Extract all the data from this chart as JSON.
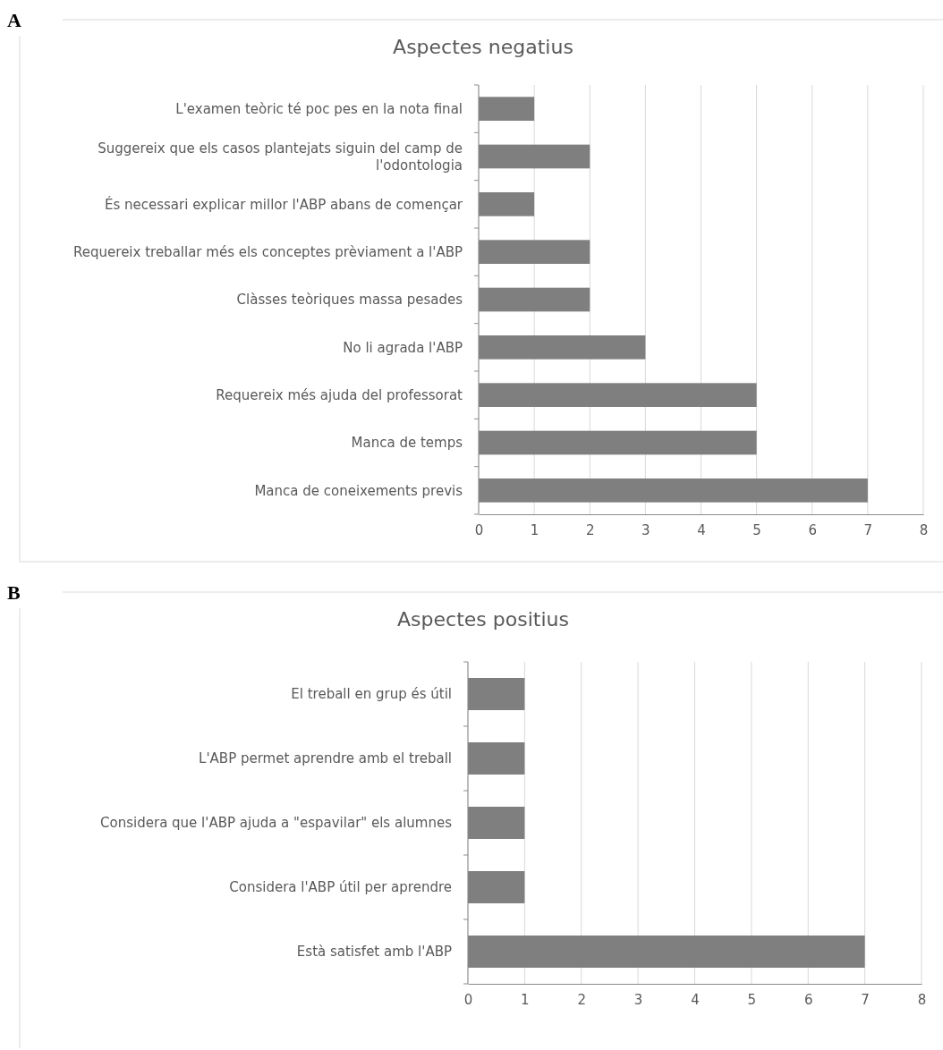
{
  "chart_data": [
    {
      "type": "bar",
      "orientation": "horizontal",
      "title": "Aspectes negatius",
      "annotations": [
        "A"
      ],
      "categories": [
        "L'examen teòric té poc pes en la nota final",
        "Suggereix que els casos plantejats siguin del camp de l'odontologia",
        "És necessari explicar millor l'ABP abans de començar",
        "Requereix treballar més els conceptes prèviament a l'ABP",
        "Clàsses teòriques massa pesades",
        "No li agrada l'ABP",
        "Requereix més ajuda del professorat",
        "Manca de temps",
        "Manca de coneixements previs"
      ],
      "values": [
        1,
        2,
        1,
        2,
        2,
        3,
        5,
        5,
        7
      ],
      "color": "#7f7f7f",
      "xlim": [
        0,
        8
      ],
      "xticks": [
        0,
        1,
        2,
        3,
        4,
        5,
        6,
        7,
        8
      ],
      "grid": "x"
    },
    {
      "type": "bar",
      "orientation": "horizontal",
      "title": "Aspectes positius",
      "annotations": [
        "B"
      ],
      "categories": [
        "El treball en grup és útil",
        "L'ABP permet aprendre amb el treball",
        "Considera que l'ABP ajuda a \"espavilar\" els alumnes",
        "Considera l'ABP útil per aprendre",
        "Està satisfet amb l'ABP"
      ],
      "values": [
        1,
        1,
        1,
        1,
        7
      ],
      "color": "#7f7f7f",
      "xlim": [
        0,
        8
      ],
      "xticks": [
        0,
        1,
        2,
        3,
        4,
        5,
        6,
        7,
        8
      ],
      "grid": "x"
    }
  ]
}
